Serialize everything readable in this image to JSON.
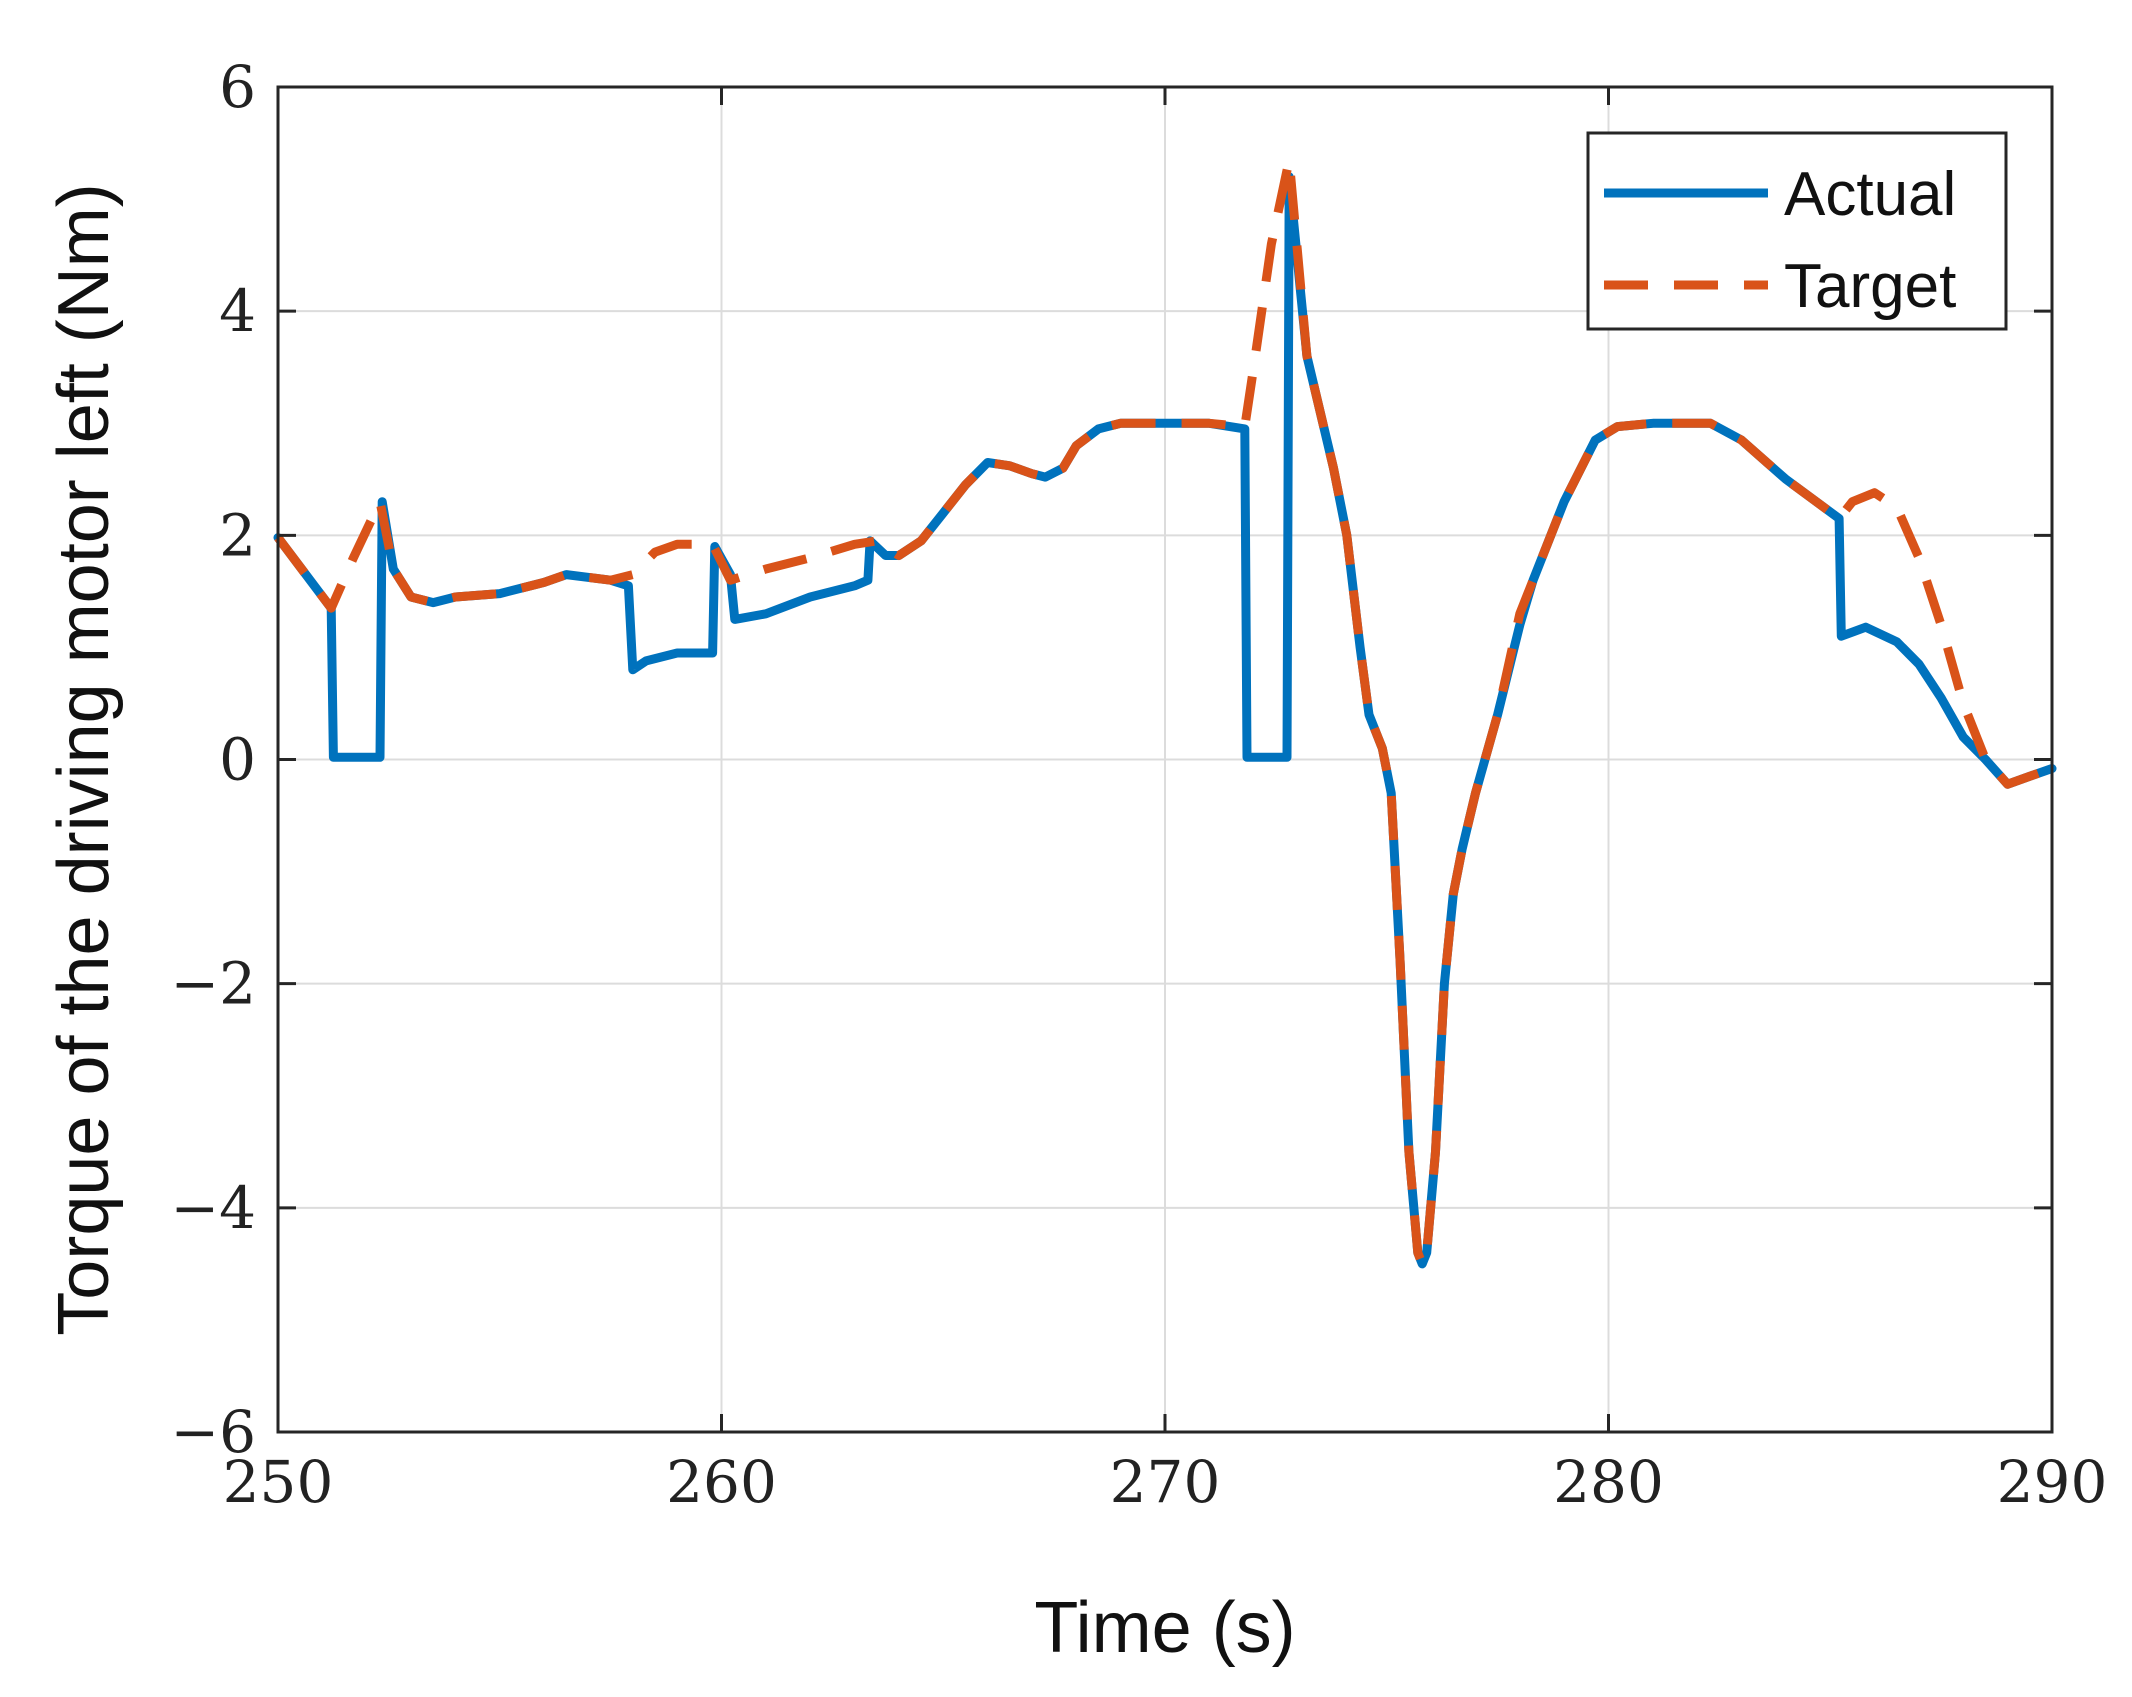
{
  "chart_data": {
    "type": "line",
    "title": "",
    "xlabel": "Time (s)",
    "ylabel": "Torque of the driving motor left (Nm)",
    "xlim": [
      250,
      290
    ],
    "ylim": [
      -6,
      6
    ],
    "x_ticks": [
      250,
      260,
      270,
      280,
      290
    ],
    "y_ticks": [
      -6,
      -4,
      -2,
      0,
      2,
      4,
      6
    ],
    "x_tick_labels": [
      "250",
      "260",
      "270",
      "280",
      "290"
    ],
    "y_tick_labels": [
      "−6",
      "−4",
      "−2",
      "0",
      "2",
      "4",
      "6"
    ],
    "grid": true,
    "legend_position": "top-right",
    "series": [
      {
        "name": "Actual",
        "color": "#0072BD",
        "style": "solid",
        "points": [
          [
            250,
            1.98
          ],
          [
            251.2,
            1.35
          ],
          [
            251.25,
            0.02
          ],
          [
            252.3,
            0.02
          ],
          [
            252.35,
            2.3
          ],
          [
            252.6,
            1.7
          ],
          [
            253,
            1.45
          ],
          [
            253.5,
            1.4
          ],
          [
            254,
            1.45
          ],
          [
            255,
            1.48
          ],
          [
            256,
            1.58
          ],
          [
            256.5,
            1.65
          ],
          [
            257.5,
            1.6
          ],
          [
            257.9,
            1.55
          ],
          [
            258,
            0.8
          ],
          [
            258.3,
            0.88
          ],
          [
            259,
            0.95
          ],
          [
            259.8,
            0.95
          ],
          [
            259.85,
            1.9
          ],
          [
            260.2,
            1.65
          ],
          [
            260.3,
            1.25
          ],
          [
            261,
            1.3
          ],
          [
            262,
            1.45
          ],
          [
            263,
            1.55
          ],
          [
            263.3,
            1.6
          ],
          [
            263.35,
            1.95
          ],
          [
            263.7,
            1.82
          ],
          [
            264,
            1.82
          ],
          [
            264.5,
            1.95
          ],
          [
            265,
            2.2
          ],
          [
            265.5,
            2.45
          ],
          [
            266,
            2.65
          ],
          [
            266.5,
            2.62
          ],
          [
            267,
            2.55
          ],
          [
            267.3,
            2.52
          ],
          [
            267.7,
            2.6
          ],
          [
            268,
            2.8
          ],
          [
            268.5,
            2.95
          ],
          [
            269,
            3.0
          ],
          [
            271,
            3.0
          ],
          [
            271.8,
            2.95
          ],
          [
            271.85,
            0.02
          ],
          [
            272.75,
            0.02
          ],
          [
            272.8,
            5.2
          ],
          [
            273.2,
            3.6
          ],
          [
            273.8,
            2.6
          ],
          [
            274.1,
            2.0
          ],
          [
            274.4,
            1.0
          ],
          [
            274.6,
            0.4
          ],
          [
            274.9,
            0.1
          ],
          [
            275.1,
            -0.3
          ],
          [
            275.3,
            -1.8
          ],
          [
            275.5,
            -3.5
          ],
          [
            275.7,
            -4.4
          ],
          [
            275.8,
            -4.5
          ],
          [
            275.9,
            -4.4
          ],
          [
            276.1,
            -3.5
          ],
          [
            276.3,
            -2.0
          ],
          [
            276.5,
            -1.2
          ],
          [
            276.7,
            -0.8
          ],
          [
            277.0,
            -0.3
          ],
          [
            277.5,
            0.4
          ],
          [
            278,
            1.2
          ],
          [
            278.3,
            1.6
          ],
          [
            279,
            2.3
          ],
          [
            279.7,
            2.85
          ],
          [
            280.2,
            2.97
          ],
          [
            281,
            3.0
          ],
          [
            282.3,
            3.0
          ],
          [
            283,
            2.85
          ],
          [
            284,
            2.5
          ],
          [
            285.2,
            2.15
          ],
          [
            285.25,
            1.1
          ],
          [
            285.8,
            1.18
          ],
          [
            286.5,
            1.05
          ],
          [
            287,
            0.85
          ],
          [
            287.5,
            0.55
          ],
          [
            288,
            0.2
          ],
          [
            288.5,
            0.0
          ],
          [
            289,
            -0.22
          ],
          [
            289.5,
            -0.15
          ],
          [
            290,
            -0.08
          ]
        ]
      },
      {
        "name": "Target",
        "color": "#D95319",
        "style": "dashed",
        "points": [
          [
            250,
            1.98
          ],
          [
            251.2,
            1.35
          ],
          [
            251.7,
            1.8
          ],
          [
            252.3,
            2.3
          ],
          [
            252.6,
            1.7
          ],
          [
            253,
            1.45
          ],
          [
            253.5,
            1.4
          ],
          [
            254,
            1.45
          ],
          [
            255,
            1.48
          ],
          [
            256,
            1.58
          ],
          [
            256.5,
            1.65
          ],
          [
            257.5,
            1.6
          ],
          [
            258,
            1.65
          ],
          [
            258.5,
            1.85
          ],
          [
            259,
            1.92
          ],
          [
            259.8,
            1.92
          ],
          [
            260.2,
            1.6
          ],
          [
            261,
            1.7
          ],
          [
            262,
            1.8
          ],
          [
            263,
            1.92
          ],
          [
            263.5,
            1.95
          ],
          [
            264,
            1.82
          ],
          [
            264.5,
            1.95
          ],
          [
            265,
            2.2
          ],
          [
            265.5,
            2.45
          ],
          [
            266,
            2.65
          ],
          [
            266.5,
            2.62
          ],
          [
            267,
            2.55
          ],
          [
            267.3,
            2.52
          ],
          [
            267.7,
            2.6
          ],
          [
            268,
            2.8
          ],
          [
            268.5,
            2.95
          ],
          [
            269,
            3.0
          ],
          [
            271,
            3.0
          ],
          [
            271.8,
            2.97
          ],
          [
            272,
            3.5
          ],
          [
            272.4,
            4.6
          ],
          [
            272.8,
            5.35
          ],
          [
            273.2,
            3.6
          ],
          [
            273.8,
            2.6
          ],
          [
            274.1,
            2.0
          ],
          [
            274.4,
            1.0
          ],
          [
            274.6,
            0.4
          ],
          [
            274.9,
            0.1
          ],
          [
            275.1,
            -0.3
          ],
          [
            275.3,
            -1.8
          ],
          [
            275.5,
            -3.5
          ],
          [
            275.7,
            -4.4
          ],
          [
            275.8,
            -4.5
          ],
          [
            275.9,
            -4.4
          ],
          [
            276.1,
            -3.5
          ],
          [
            276.3,
            -2.0
          ],
          [
            276.5,
            -1.2
          ],
          [
            276.7,
            -0.8
          ],
          [
            277.0,
            -0.3
          ],
          [
            277.5,
            0.4
          ],
          [
            278,
            1.3
          ],
          [
            278.3,
            1.6
          ],
          [
            279,
            2.3
          ],
          [
            279.7,
            2.85
          ],
          [
            280.2,
            2.97
          ],
          [
            281,
            3.0
          ],
          [
            282.3,
            3.0
          ],
          [
            283,
            2.85
          ],
          [
            284,
            2.5
          ],
          [
            285.2,
            2.15
          ],
          [
            285.5,
            2.3
          ],
          [
            286,
            2.38
          ],
          [
            286.5,
            2.25
          ],
          [
            287,
            1.8
          ],
          [
            287.5,
            1.2
          ],
          [
            288,
            0.5
          ],
          [
            288.5,
            0.0
          ],
          [
            289,
            -0.22
          ],
          [
            289.5,
            -0.15
          ],
          [
            290,
            -0.08
          ]
        ]
      }
    ]
  }
}
